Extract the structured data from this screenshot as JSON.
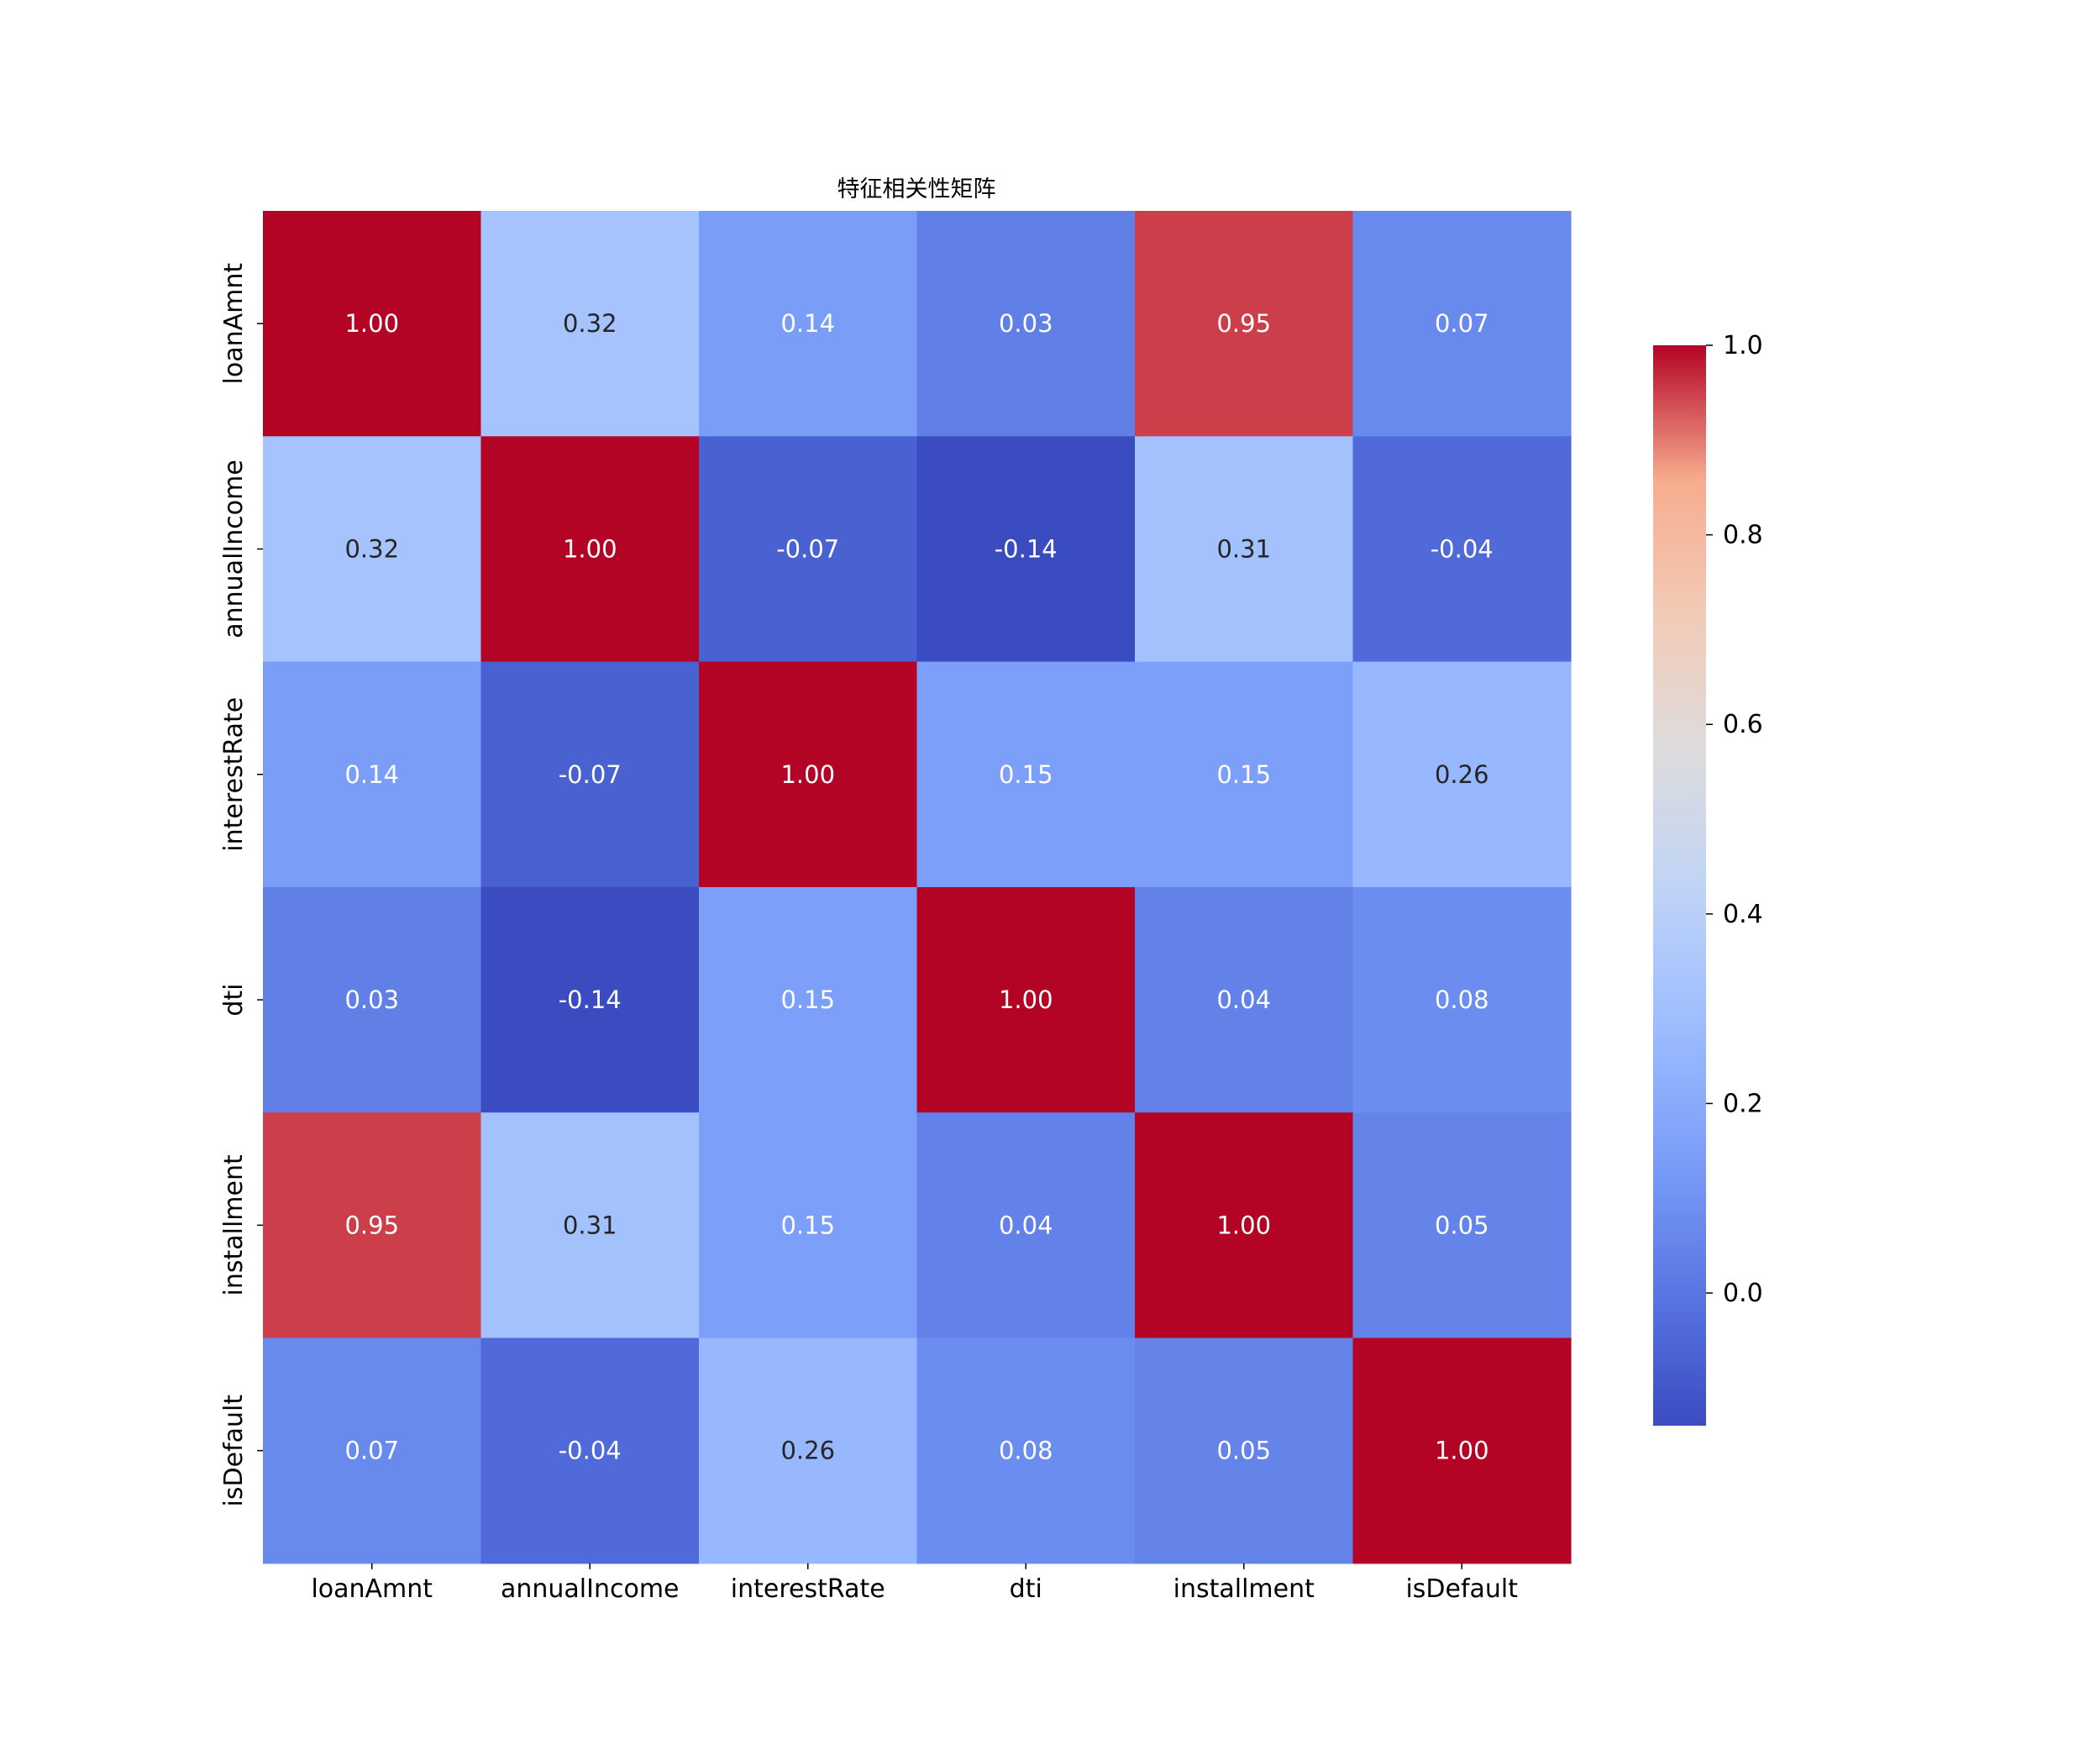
{
  "chart_data": {
    "type": "heatmap",
    "title": "特征相关性矩阵",
    "xlabel": "",
    "ylabel": "",
    "x_labels": [
      "loanAmnt",
      "annualIncome",
      "interestRate",
      "dti",
      "installment",
      "isDefault"
    ],
    "y_labels": [
      "loanAmnt",
      "annualIncome",
      "interestRate",
      "dti",
      "installment",
      "isDefault"
    ],
    "values": [
      [
        1.0,
        0.32,
        0.14,
        0.03,
        0.95,
        0.07
      ],
      [
        0.32,
        1.0,
        -0.07,
        -0.14,
        0.31,
        -0.04
      ],
      [
        0.14,
        -0.07,
        1.0,
        0.15,
        0.15,
        0.26
      ],
      [
        0.03,
        -0.14,
        0.15,
        1.0,
        0.04,
        0.08
      ],
      [
        0.95,
        0.31,
        0.15,
        0.04,
        1.0,
        0.05
      ],
      [
        0.07,
        -0.04,
        0.26,
        0.08,
        0.05,
        1.0
      ]
    ],
    "value_format": "0.00",
    "colormap": "coolwarm",
    "colorbar": {
      "range": [
        -0.14,
        1.0
      ],
      "ticks": [
        0.0,
        0.2,
        0.4,
        0.6,
        0.8,
        1.0
      ],
      "tick_labels": [
        "0.0",
        "0.2",
        "0.4",
        "0.6",
        "0.8",
        "1.0"
      ],
      "placement": "right"
    },
    "grid": false,
    "legend": "none"
  }
}
